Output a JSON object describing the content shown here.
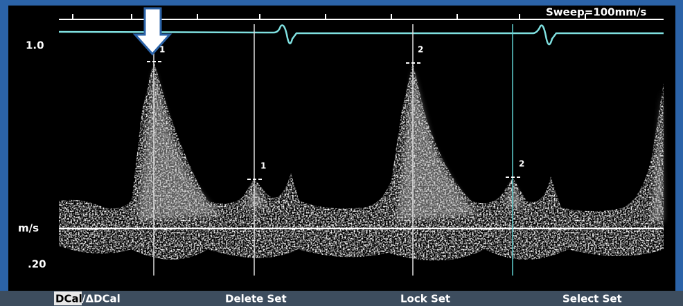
{
  "header": {
    "sweep": "Sweep=100mm/s"
  },
  "scale": {
    "top": "1.0",
    "unit": "m/s",
    "bottom": ".20"
  },
  "markers": [
    "1",
    "2",
    "1",
    "2"
  ],
  "softkeys": [
    "DCal",
    "/ΔDCal",
    "Delete Set",
    "Lock Set",
    "Select Set"
  ]
}
